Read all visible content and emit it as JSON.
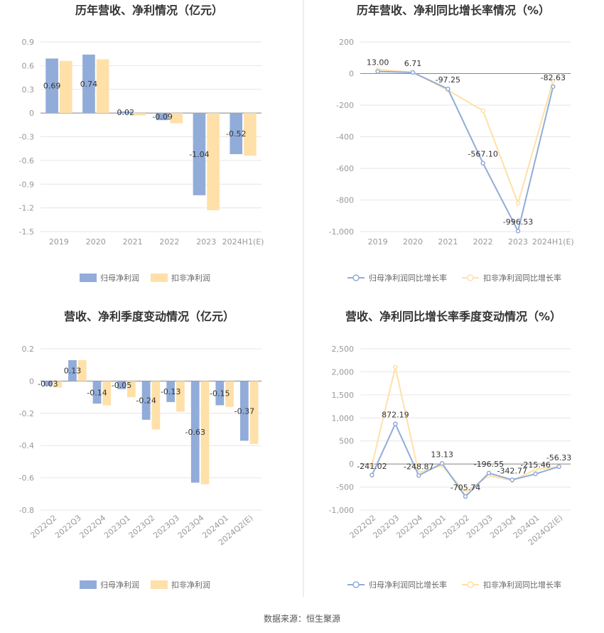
{
  "colors": {
    "primary": "#91acd9",
    "secondary": "#ffe0a8",
    "grid": "#e6e6e6",
    "divider": "#dddddd"
  },
  "source": "数据来源：恒生聚源",
  "legend": {
    "bar_primary": "归母净利润",
    "bar_secondary": "扣非净利润",
    "line_primary": "归母净利润同比增长率",
    "line_secondary": "扣非净利润同比增长率"
  },
  "chart_data": [
    {
      "id": "annual-profit",
      "type": "bar",
      "title": "历年营收、净利情况（亿元）",
      "categories": [
        "2019",
        "2020",
        "2021",
        "2022",
        "2023",
        "2024H1(E)"
      ],
      "series": [
        {
          "name": "归母净利润",
          "values": [
            0.69,
            0.74,
            0.02,
            -0.09,
            -1.04,
            -0.52
          ],
          "labels": [
            "0.69",
            "0.74",
            "0.02",
            "-0.09",
            "-1.04",
            "-0.52"
          ]
        },
        {
          "name": "扣非净利润",
          "values": [
            0.66,
            0.68,
            -0.03,
            -0.13,
            -1.23,
            -0.54
          ]
        }
      ],
      "yticks": [
        0.9,
        0.6,
        0.3,
        0,
        -0.3,
        -0.6,
        -0.9,
        -1.2,
        -1.5
      ],
      "ytick_labels": [
        "0.9",
        "0.6",
        "0.3",
        "0",
        "-0.3",
        "-0.6",
        "-0.9",
        "-1.2",
        "-1.5"
      ],
      "ylim": [
        -1.5,
        0.9
      ],
      "xlabel_rotate": false
    },
    {
      "id": "annual-growth",
      "type": "line",
      "title": "历年营收、净利同比增长率情况（%）",
      "categories": [
        "2019",
        "2020",
        "2021",
        "2022",
        "2023",
        "2024H1(E)"
      ],
      "series": [
        {
          "name": "归母净利润同比增长率",
          "values": [
            13.0,
            6.71,
            -97.25,
            -567.1,
            -996.53,
            -82.63
          ],
          "labels": [
            "13.00",
            "6.71",
            "-97.25",
            "-567.10",
            "-996.53",
            "-82.63"
          ]
        },
        {
          "name": "扣非净利润同比增长率",
          "values": [
            25,
            8,
            -105,
            -235,
            -820,
            -45
          ]
        }
      ],
      "yticks": [
        200,
        0,
        -200,
        -400,
        -600,
        -800,
        -1000
      ],
      "ytick_labels": [
        "200",
        "0",
        "-200",
        "-400",
        "-600",
        "-800",
        "-1,000"
      ],
      "ylim": [
        -1000,
        200
      ],
      "xlabel_rotate": false
    },
    {
      "id": "quarterly-profit",
      "type": "bar",
      "title": "营收、净利季度变动情况（亿元）",
      "categories": [
        "2022Q2",
        "2022Q3",
        "2022Q4",
        "2023Q1",
        "2023Q2",
        "2023Q3",
        "2023Q4",
        "2024Q1",
        "2024Q2(E)"
      ],
      "series": [
        {
          "name": "归母净利润",
          "values": [
            -0.03,
            0.13,
            -0.14,
            -0.05,
            -0.24,
            -0.13,
            -0.63,
            -0.15,
            -0.37
          ],
          "labels": [
            "-0.03",
            "0.13",
            "-0.14",
            "-0.05",
            "-0.24",
            "-0.13",
            "-0.63",
            "-0.15",
            "-0.37"
          ]
        },
        {
          "name": "扣非净利润",
          "values": [
            -0.04,
            0.13,
            -0.15,
            -0.1,
            -0.3,
            -0.19,
            -0.64,
            -0.16,
            -0.39
          ]
        }
      ],
      "yticks": [
        0.2,
        0,
        -0.2,
        -0.4,
        -0.6,
        -0.8
      ],
      "ytick_labels": [
        "0.2",
        "0",
        "-0.2",
        "-0.4",
        "-0.6",
        "-0.8"
      ],
      "ylim": [
        -0.8,
        0.2
      ],
      "xlabel_rotate": true
    },
    {
      "id": "quarterly-growth",
      "type": "line",
      "title": "营收、净利同比增长率季度变动情况（%）",
      "categories": [
        "2022Q2",
        "2022Q3",
        "2022Q4",
        "2023Q1",
        "2023Q2",
        "2023Q3",
        "2023Q4",
        "2024Q1",
        "2024Q2(E)"
      ],
      "series": [
        {
          "name": "归母净利润同比增长率",
          "values": [
            -241.02,
            872.19,
            -248.87,
            13.13,
            -705.74,
            -196.55,
            -342.77,
            -215.46,
            -56.33
          ],
          "labels": [
            "-241.02",
            "872.19",
            "-248.87",
            "13.13",
            "-705.74",
            "-196.55",
            "-342.77",
            "-215.46",
            "-56.33"
          ]
        },
        {
          "name": "扣非净利润同比增长率",
          "values": [
            -20,
            2100,
            -190,
            -30,
            -620,
            -250,
            -360,
            -120,
            -60
          ]
        }
      ],
      "yticks": [
        2500,
        2000,
        1500,
        1000,
        500,
        0,
        -500,
        -1000
      ],
      "ytick_labels": [
        "2,500",
        "2,000",
        "1,500",
        "1,000",
        "500",
        "0",
        "-500",
        "-1,000"
      ],
      "ylim": [
        -1000,
        2500
      ],
      "xlabel_rotate": true
    }
  ]
}
